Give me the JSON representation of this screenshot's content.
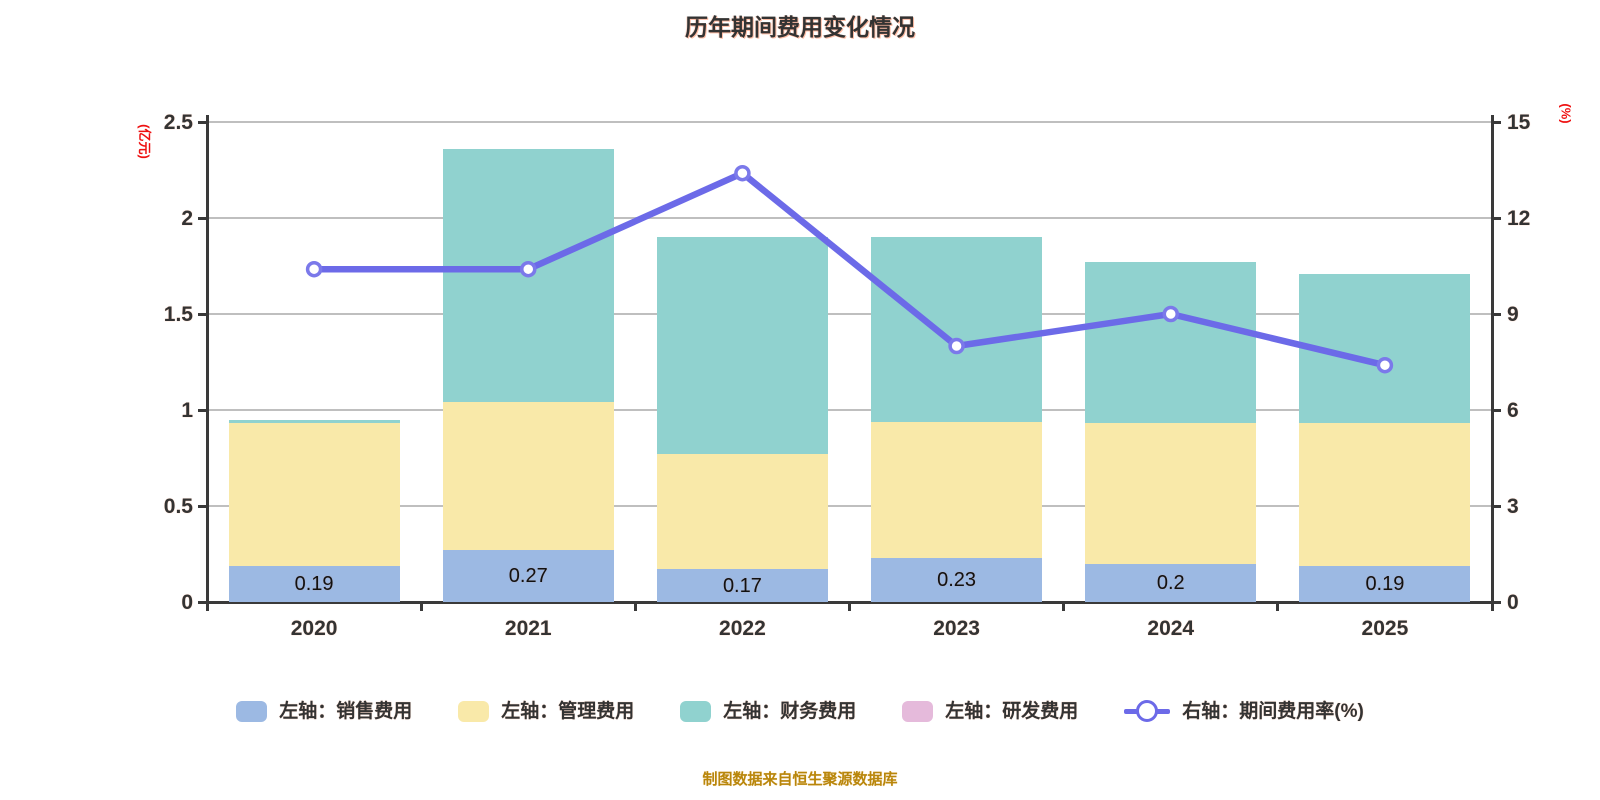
{
  "title": "历年期间费用变化情况",
  "footer": "制图数据来自恒生聚源数据库",
  "colors": {
    "sales_bar": "#9CB9E3",
    "admin_bar": "#F9E9A9",
    "finance_bar": "#90D2CF",
    "rd_bar": "#E5BADB",
    "rate_line": "#6C6AE8",
    "marker_ring": "#7B79EA",
    "axis": "#3a3a3a",
    "grid": "#BFBFBF",
    "axis_name_red": "#EE1111",
    "footer_orange": "#B8860B"
  },
  "chart_data": {
    "type": "bar",
    "subtype": "stacked-bars-with-right-axis-line",
    "title": "历年期间费用变化情况",
    "categories": [
      "2020",
      "2021",
      "2022",
      "2023",
      "2024",
      "2025"
    ],
    "series": [
      {
        "name": "左轴：销售费用",
        "type": "bar",
        "stack": "total",
        "color": "#9CB9E3",
        "values": [
          0.19,
          0.27,
          0.17,
          0.23,
          0.2,
          0.19
        ],
        "value_labels": [
          "0.19",
          "0.27",
          "0.17",
          "0.23",
          "0.2",
          "0.19"
        ]
      },
      {
        "name": "左轴：管理费用",
        "type": "bar",
        "stack": "total",
        "color": "#F9E9A9",
        "values": [
          0.74,
          0.77,
          0.6,
          0.71,
          0.73,
          0.74
        ]
      },
      {
        "name": "左轴：财务费用",
        "type": "bar",
        "stack": "total",
        "color": "#90D2CF",
        "values": [
          0.02,
          1.32,
          1.13,
          0.96,
          0.84,
          0.78
        ]
      },
      {
        "name": "左轴：研发费用",
        "type": "bar",
        "stack": "total",
        "color": "#E5BADB",
        "values": [
          0,
          0,
          0,
          0,
          0,
          0
        ]
      },
      {
        "name": "右轴：期间费用率(%)",
        "type": "line",
        "axis": "right",
        "color": "#6C6AE8",
        "values": [
          10.4,
          10.4,
          13.4,
          8.0,
          9.0,
          7.4
        ]
      }
    ],
    "left_axis": {
      "name": "(亿元)",
      "min": 0,
      "max": 2.5,
      "ticks": [
        "0",
        "0.5",
        "1",
        "1.5",
        "2",
        "2.5"
      ]
    },
    "right_axis": {
      "name": "(%)",
      "min": 0,
      "max": 15,
      "ticks": [
        "0",
        "3",
        "6",
        "9",
        "12",
        "15"
      ]
    },
    "x_axis_labels": [
      "2020",
      "2021",
      "2022",
      "2023",
      "2024",
      "2025"
    ],
    "grid": true,
    "legend_position": "bottom"
  },
  "legend": {
    "items": [
      {
        "label": "左轴：销售费用",
        "marker": "rect",
        "color": "#9CB9E3"
      },
      {
        "label": "左轴：管理费用",
        "marker": "rect",
        "color": "#F9E9A9"
      },
      {
        "label": "左轴：财务费用",
        "marker": "rect",
        "color": "#90D2CF"
      },
      {
        "label": "左轴：研发费用",
        "marker": "rect",
        "color": "#E5BADB"
      },
      {
        "label": "右轴：期间费用率(%)",
        "marker": "line",
        "color": "#6C6AE8"
      }
    ]
  }
}
